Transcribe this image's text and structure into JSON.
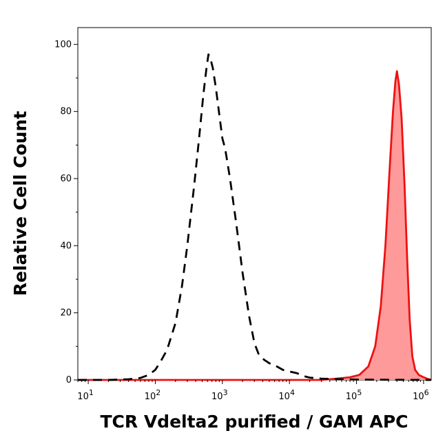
{
  "chart_data": {
    "type": "area",
    "xlabel": "TCR Vdelta2 purified / GAM APC",
    "ylabel": "Relative Cell Count",
    "xscale": "log",
    "xlim": [
      7,
      1300000
    ],
    "ylim": [
      0,
      105
    ],
    "x_ticks": [
      {
        "value": 10,
        "base": "10",
        "exp": "1"
      },
      {
        "value": 100,
        "base": "10",
        "exp": "2"
      },
      {
        "value": 1000,
        "base": "10",
        "exp": "3"
      },
      {
        "value": 10000,
        "base": "10",
        "exp": "4"
      },
      {
        "value": 100000,
        "base": "10",
        "exp": "5"
      },
      {
        "value": 1000000,
        "base": "10",
        "exp": "6"
      }
    ],
    "y_ticks": [
      0,
      20,
      40,
      60,
      80,
      100
    ],
    "grid": false,
    "legend": "none",
    "series": [
      {
        "style": "dashed",
        "color": "#000000",
        "fill": "none",
        "points": [
          [
            7,
            0
          ],
          [
            20,
            0
          ],
          [
            40,
            0.2
          ],
          [
            60,
            0.6
          ],
          [
            80,
            1.5
          ],
          [
            100,
            3
          ],
          [
            120,
            5.5
          ],
          [
            150,
            9
          ],
          [
            200,
            17
          ],
          [
            250,
            28
          ],
          [
            300,
            40
          ],
          [
            380,
            58
          ],
          [
            450,
            72
          ],
          [
            520,
            85
          ],
          [
            580,
            93
          ],
          [
            620,
            97
          ],
          [
            660,
            96
          ],
          [
            720,
            93
          ],
          [
            800,
            87
          ],
          [
            900,
            79
          ],
          [
            1000,
            72
          ],
          [
            1100,
            69
          ],
          [
            1300,
            60
          ],
          [
            1600,
            47
          ],
          [
            2000,
            32
          ],
          [
            2500,
            19
          ],
          [
            3000,
            11
          ],
          [
            3500,
            7.5
          ],
          [
            4200,
            6
          ],
          [
            5000,
            5
          ],
          [
            6500,
            4
          ],
          [
            8000,
            3
          ],
          [
            10000,
            2.5
          ],
          [
            13000,
            2
          ],
          [
            16000,
            1.2
          ],
          [
            20000,
            0.7
          ],
          [
            30000,
            0.4
          ],
          [
            40000,
            0.3
          ],
          [
            60000,
            0.2
          ],
          [
            100000,
            0.1
          ],
          [
            1300000,
            0
          ]
        ]
      },
      {
        "style": "solid",
        "color": "#ee1111",
        "fill": "#ff9a9a",
        "points": [
          [
            7,
            0
          ],
          [
            30000,
            0
          ],
          [
            50000,
            0.4
          ],
          [
            80000,
            0.8
          ],
          [
            110000,
            1.5
          ],
          [
            150000,
            4
          ],
          [
            190000,
            10
          ],
          [
            230000,
            22
          ],
          [
            270000,
            40
          ],
          [
            310000,
            62
          ],
          [
            350000,
            80
          ],
          [
            380000,
            89
          ],
          [
            400000,
            92
          ],
          [
            430000,
            88
          ],
          [
            470000,
            78
          ],
          [
            520000,
            58
          ],
          [
            570000,
            36
          ],
          [
            620000,
            18
          ],
          [
            680000,
            7
          ],
          [
            750000,
            3
          ],
          [
            850000,
            1.5
          ],
          [
            1000000,
            0.8
          ],
          [
            1150000,
            0.3
          ],
          [
            1300000,
            0
          ]
        ]
      }
    ]
  }
}
